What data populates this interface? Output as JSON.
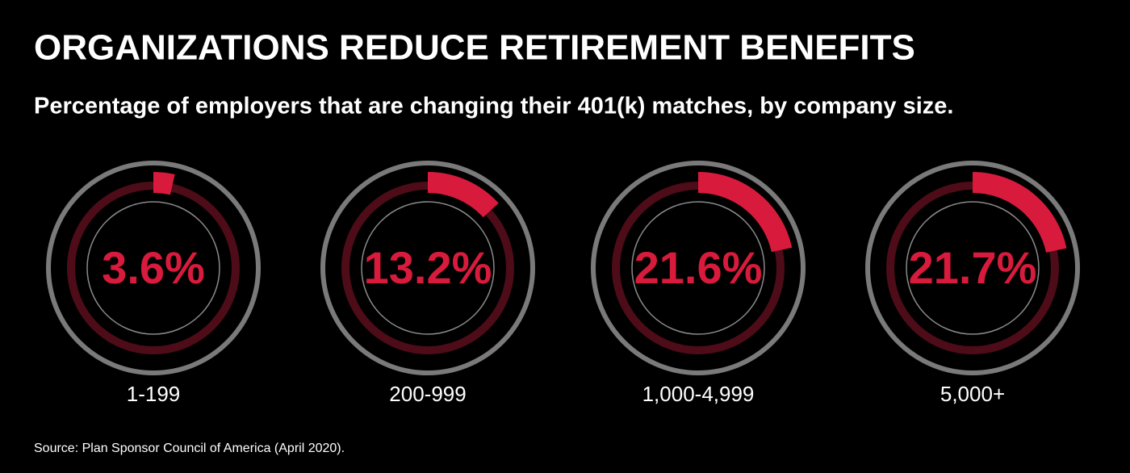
{
  "chart_data": {
    "type": "gauge",
    "title": "ORGANIZATIONS REDUCE RETIREMENT BENEFITS",
    "subtitle": "Percentage of employers that are changing their 401(k) matches, by company size.",
    "source": "Source: Plan Sponsor Council of America (April 2020).",
    "categories": [
      "1-199",
      "200-999",
      "1,000-4,999",
      "5,000+"
    ],
    "values": [
      3.6,
      13.2,
      21.6,
      21.7
    ],
    "value_labels": [
      "3.6%",
      "13.2%",
      "21.6%",
      "21.7%"
    ],
    "ylim": [
      0,
      100
    ],
    "color": "#d81b3c"
  }
}
